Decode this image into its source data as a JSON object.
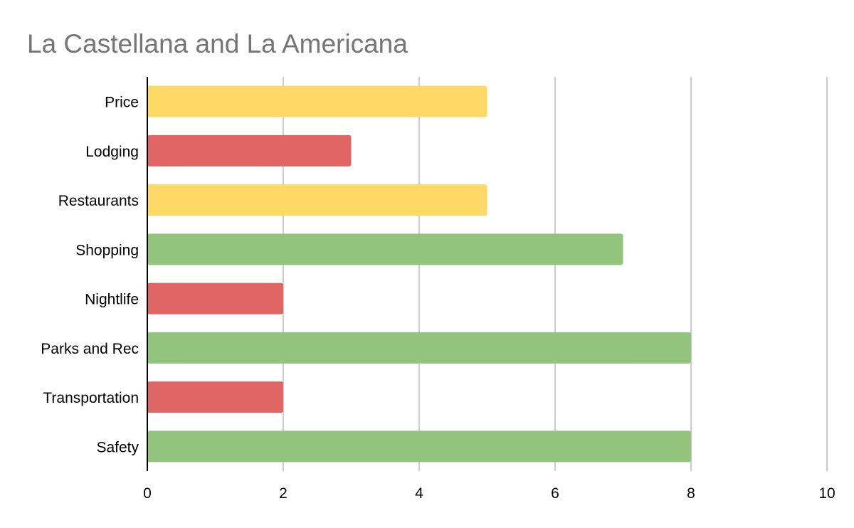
{
  "chart_data": {
    "type": "bar",
    "orientation": "horizontal",
    "title": "La Castellana and La Americana",
    "xlabel": "",
    "ylabel": "",
    "xlim": [
      0,
      10
    ],
    "x_ticks": [
      0,
      2,
      4,
      6,
      8,
      10
    ],
    "grid": true,
    "legend": "none",
    "categories": [
      "Price",
      "Lodging",
      "Restaurants",
      "Shopping",
      "Nightlife",
      "Parks and Rec",
      "Transportation",
      "Safety"
    ],
    "values": [
      5,
      3,
      5,
      7,
      2,
      8,
      2,
      8
    ],
    "bar_colors": [
      "#ffd966",
      "#e06666",
      "#ffd966",
      "#93c47d",
      "#e06666",
      "#93c47d",
      "#e06666",
      "#93c47d"
    ]
  }
}
